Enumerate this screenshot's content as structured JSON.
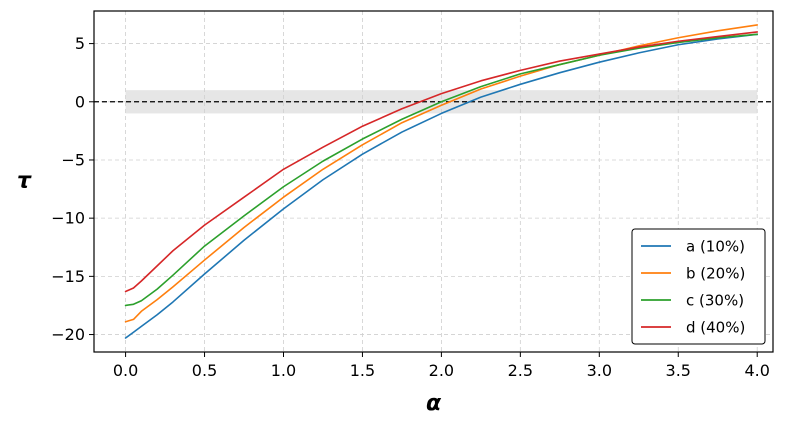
{
  "chart_data": {
    "type": "line",
    "xlabel": "α",
    "ylabel": "τ",
    "xlim": [
      -0.2,
      4.1
    ],
    "ylim": [
      -21.5,
      7.8
    ],
    "xticks": [
      0.0,
      0.5,
      1.0,
      1.5,
      2.0,
      2.5,
      3.0,
      3.5,
      4.0
    ],
    "xtick_labels": [
      "0.0",
      "0.5",
      "1.0",
      "1.5",
      "2.0",
      "2.5",
      "3.0",
      "3.5",
      "4.0"
    ],
    "yticks": [
      5,
      0,
      -5,
      -10,
      -15,
      -20
    ],
    "ytick_labels": [
      "5",
      "0",
      "−5",
      "−10",
      "−15",
      "−20"
    ],
    "grid": true,
    "legend_placement": "lower-right",
    "reference_line": {
      "y": 0,
      "style": "dashed",
      "color": "#000000"
    },
    "shaded_band": {
      "y_min": -1,
      "y_max": 1,
      "color": "#e6e6e6"
    },
    "x": [
      0.0,
      0.05,
      0.1,
      0.2,
      0.3,
      0.5,
      0.75,
      1.0,
      1.25,
      1.5,
      1.75,
      2.0,
      2.25,
      2.5,
      2.75,
      3.0,
      3.25,
      3.5,
      3.75,
      4.0
    ],
    "series": [
      {
        "name": "a (10%)",
        "color": "#1f77b4",
        "values": [
          -20.3,
          -19.8,
          -19.3,
          -18.3,
          -17.2,
          -14.8,
          -11.9,
          -9.2,
          -6.7,
          -4.5,
          -2.6,
          -1.0,
          0.4,
          1.5,
          2.5,
          3.4,
          4.2,
          4.9,
          5.4,
          5.8
        ]
      },
      {
        "name": "b (20%)",
        "color": "#ff7f0e",
        "values": [
          -18.9,
          -18.7,
          -18.0,
          -17.0,
          -15.9,
          -13.6,
          -10.8,
          -8.2,
          -5.8,
          -3.7,
          -1.8,
          -0.3,
          1.1,
          2.2,
          3.2,
          4.0,
          4.8,
          5.5,
          6.1,
          6.6
        ]
      },
      {
        "name": "c (30%)",
        "color": "#2ca02c",
        "values": [
          -17.5,
          -17.4,
          -17.1,
          -16.1,
          -14.9,
          -12.4,
          -9.8,
          -7.3,
          -5.1,
          -3.2,
          -1.5,
          0.0,
          1.3,
          2.4,
          3.2,
          4.0,
          4.6,
          5.1,
          5.5,
          5.8
        ]
      },
      {
        "name": "d (40%)",
        "color": "#d62728",
        "values": [
          -16.3,
          -16.0,
          -15.4,
          -14.1,
          -12.8,
          -10.6,
          -8.2,
          -5.8,
          -3.9,
          -2.1,
          -0.6,
          0.7,
          1.8,
          2.7,
          3.5,
          4.1,
          4.7,
          5.2,
          5.6,
          6.0
        ]
      }
    ]
  }
}
